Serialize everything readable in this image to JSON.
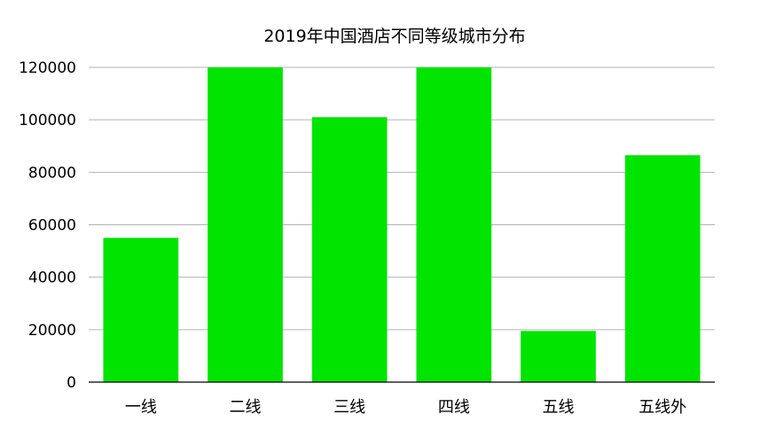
{
  "chart_data": {
    "type": "bar",
    "title": "2019年中国酒店不同等级城市分布",
    "categories": [
      "一线",
      "二线",
      "三线",
      "四线",
      "五线",
      "五线外"
    ],
    "series": [
      {
        "values": [
          55000,
          120000,
          101000,
          120000,
          19500,
          86500
        ]
      }
    ],
    "ylim": [
      0,
      120000
    ],
    "yticks": [
      0,
      20000,
      40000,
      60000,
      80000,
      100000,
      120000
    ],
    "xlabel": "",
    "ylabel": "",
    "grid": true,
    "legend": "none",
    "bar_color": "#00e400",
    "grid_color": "#b3b3b3",
    "axis_color": "#000000"
  }
}
